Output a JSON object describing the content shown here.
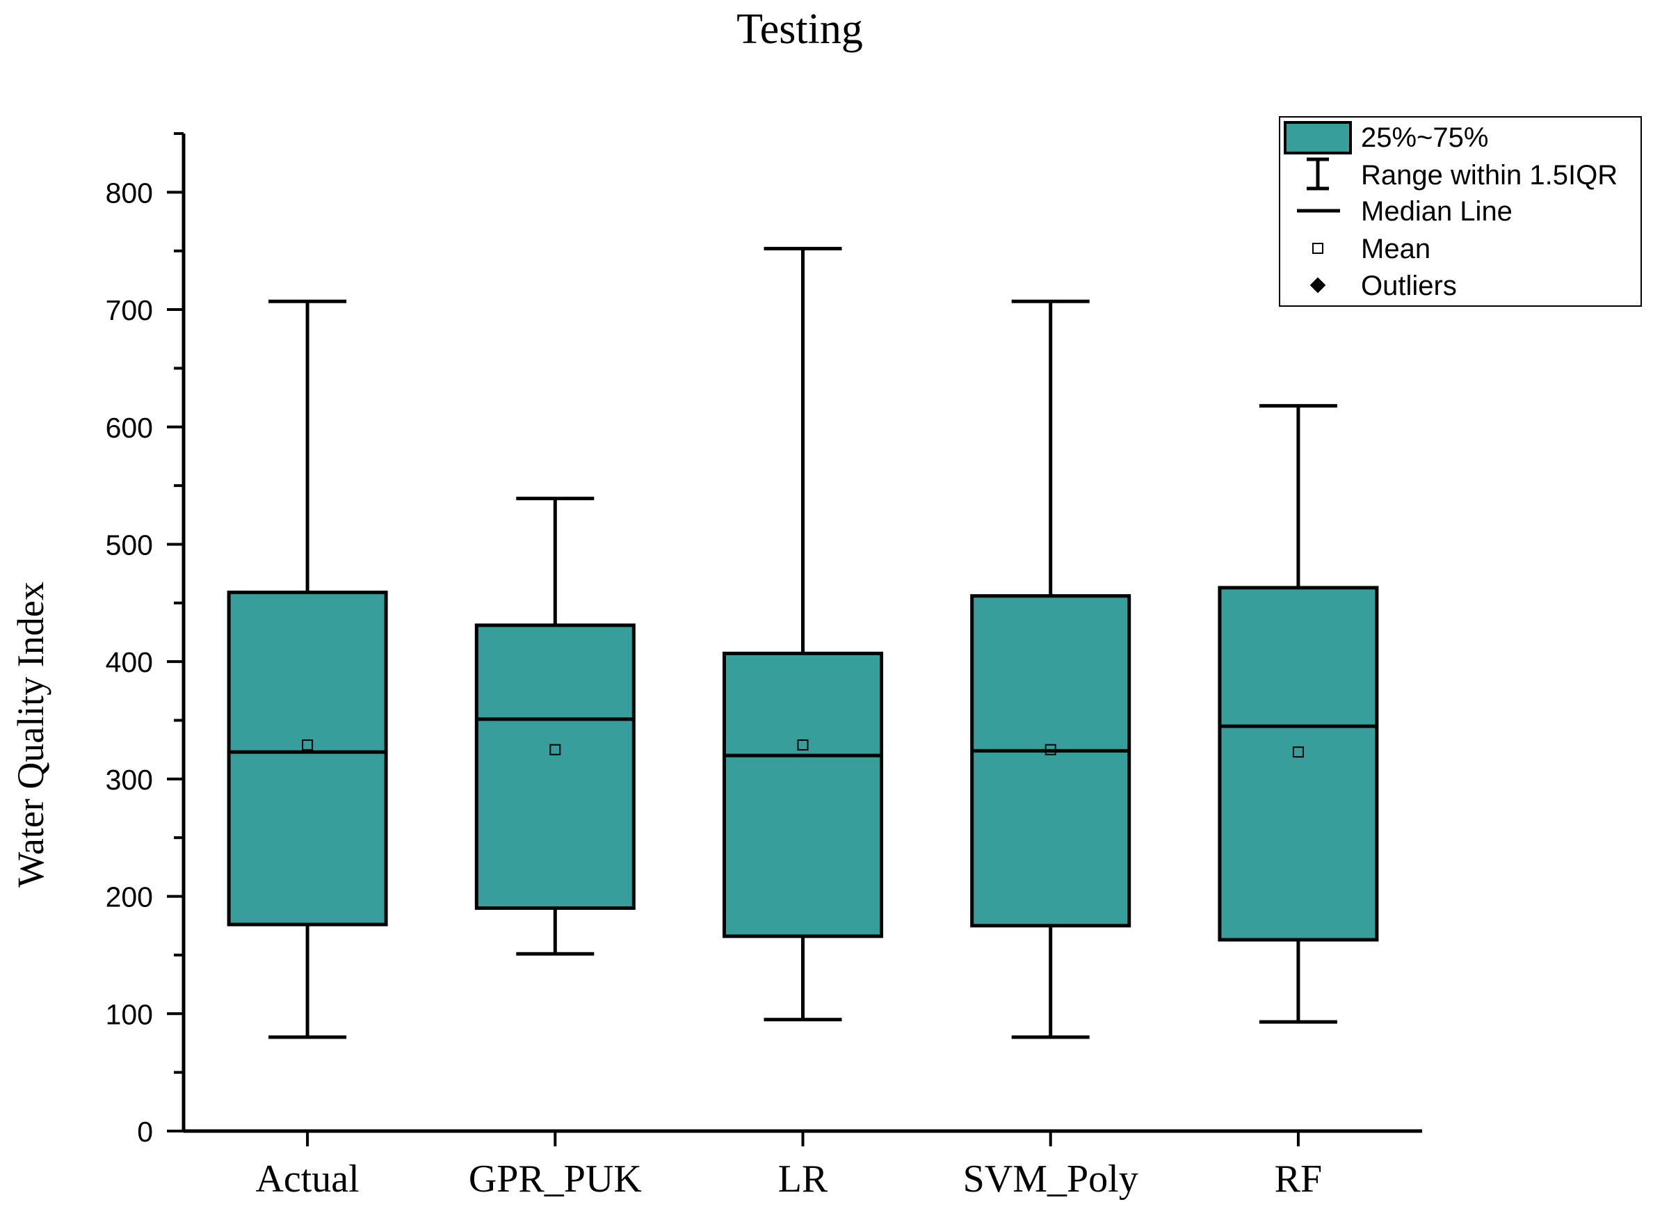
{
  "chart_data": {
    "type": "box",
    "title": "Testing",
    "xlabel": "",
    "ylabel": "Water Quality Index",
    "ylim": [
      0,
      850
    ],
    "yticks": [
      0,
      100,
      200,
      300,
      400,
      500,
      600,
      700,
      800
    ],
    "categories": [
      "Actual",
      "GPR_PUK",
      "LR",
      "SVM_Poly",
      "RF"
    ],
    "boxes": [
      {
        "name": "Actual",
        "whisker_low": 80,
        "q1": 176,
        "median": 323,
        "q3": 459,
        "whisker_high": 707,
        "mean": 329
      },
      {
        "name": "GPR_PUK",
        "whisker_low": 151,
        "q1": 190,
        "median": 351,
        "q3": 431,
        "whisker_high": 539,
        "mean": 325
      },
      {
        "name": "LR",
        "whisker_low": 95,
        "q1": 166,
        "median": 320,
        "q3": 407,
        "whisker_high": 752,
        "mean": 329
      },
      {
        "name": "SVM_Poly",
        "whisker_low": 80,
        "q1": 175,
        "median": 324,
        "q3": 456,
        "whisker_high": 707,
        "mean": 325
      },
      {
        "name": "RF",
        "whisker_low": 93,
        "q1": 163,
        "median": 345,
        "q3": 463,
        "whisker_high": 618,
        "mean": 323
      }
    ],
    "legend": {
      "position": "top-right",
      "items": [
        "25%~75%",
        "Range within 1.5IQR",
        "Median Line",
        "Mean",
        "Outliers"
      ]
    },
    "colors": {
      "box_fill": "#389e9b",
      "stroke": "#000000"
    }
  }
}
